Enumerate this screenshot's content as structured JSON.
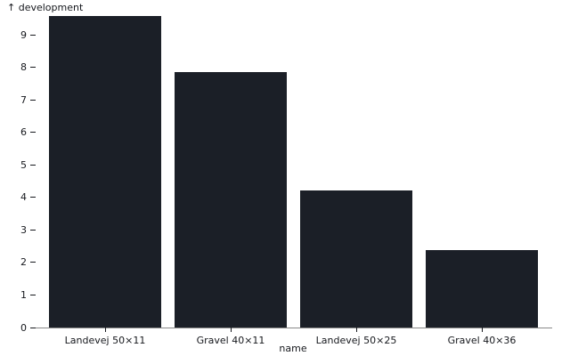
{
  "chart_data": {
    "type": "bar",
    "title": "",
    "ylabel": "development",
    "ylabel_display": "↑ development",
    "xlabel": "name",
    "categories": [
      "Landevej 50×11",
      "Gravel 40×11",
      "Landevej 50×25",
      "Gravel 40×36"
    ],
    "values": [
      9.57,
      7.84,
      4.21,
      2.39
    ],
    "yticks": [
      0,
      1,
      2,
      3,
      4,
      5,
      6,
      7,
      8,
      9
    ],
    "ylim": [
      0,
      9.6
    ],
    "grid": false,
    "legend": "none",
    "bar_color": "#1b1f27",
    "axis_line_color": "#888888",
    "tick_color": "#16181d",
    "text_color": "#16181d"
  }
}
